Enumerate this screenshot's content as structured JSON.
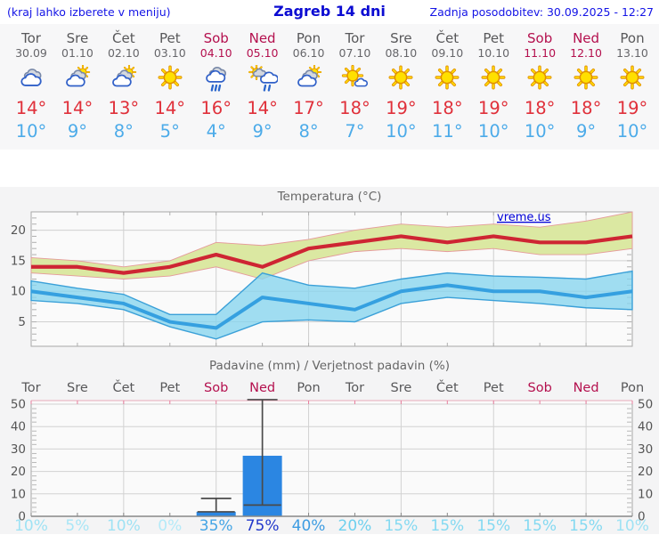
{
  "header": {
    "note": "(kraj lahko izberete v meniju)",
    "title": "Zagreb 14 dni",
    "updated": "Zadnja posodobitev: 30.09.2025 - 12:27"
  },
  "days": [
    {
      "name": "Tor",
      "date": "30.09",
      "weekend": false,
      "icon": "cloudy",
      "tmax": "14°",
      "tmin": "10°",
      "pop": "10%",
      "pop_color": "#9fe2f4"
    },
    {
      "name": "Sre",
      "date": "01.10",
      "weekend": false,
      "icon": "partly",
      "tmax": "14°",
      "tmin": "9°",
      "pop": "5%",
      "pop_color": "#a9e6f6"
    },
    {
      "name": "Čet",
      "date": "02.10",
      "weekend": false,
      "icon": "partly",
      "tmax": "13°",
      "tmin": "8°",
      "pop": "10%",
      "pop_color": "#9fe2f4"
    },
    {
      "name": "Pet",
      "date": "03.10",
      "weekend": false,
      "icon": "sun",
      "tmax": "14°",
      "tmin": "5°",
      "pop": "0%",
      "pop_color": "#b4eaf8"
    },
    {
      "name": "Sob",
      "date": "04.10",
      "weekend": true,
      "icon": "rain",
      "tmax": "16°",
      "tmin": "4°",
      "pop": "35%",
      "pop_color": "#45a5e5"
    },
    {
      "name": "Ned",
      "date": "05.10",
      "weekend": true,
      "icon": "sunrain",
      "tmax": "14°",
      "tmin": "9°",
      "pop": "75%",
      "pop_color": "#2238cb"
    },
    {
      "name": "Pon",
      "date": "06.10",
      "weekend": false,
      "icon": "partly",
      "tmax": "17°",
      "tmin": "8°",
      "pop": "40%",
      "pop_color": "#3d9ce2"
    },
    {
      "name": "Tor",
      "date": "07.10",
      "weekend": false,
      "icon": "suncloud",
      "tmax": "18°",
      "tmin": "7°",
      "pop": "20%",
      "pop_color": "#6ed0ee"
    },
    {
      "name": "Sre",
      "date": "08.10",
      "weekend": false,
      "icon": "sun",
      "tmax": "19°",
      "tmin": "10°",
      "pop": "15%",
      "pop_color": "#84d9f1"
    },
    {
      "name": "Čet",
      "date": "09.10",
      "weekend": false,
      "icon": "sun",
      "tmax": "18°",
      "tmin": "11°",
      "pop": "15%",
      "pop_color": "#84d9f1"
    },
    {
      "name": "Pet",
      "date": "10.10",
      "weekend": false,
      "icon": "sun",
      "tmax": "19°",
      "tmin": "10°",
      "pop": "15%",
      "pop_color": "#84d9f1"
    },
    {
      "name": "Sob",
      "date": "11.10",
      "weekend": true,
      "icon": "sun",
      "tmax": "18°",
      "tmin": "10°",
      "pop": "15%",
      "pop_color": "#84d9f1"
    },
    {
      "name": "Ned",
      "date": "12.10",
      "weekend": true,
      "icon": "sun",
      "tmax": "18°",
      "tmin": "9°",
      "pop": "15%",
      "pop_color": "#84d9f1"
    },
    {
      "name": "Pon",
      "date": "13.10",
      "weekend": false,
      "icon": "sun",
      "tmax": "19°",
      "tmin": "10°",
      "pop": "10%",
      "pop_color": "#9fe2f4"
    }
  ],
  "chart_data": [
    {
      "type": "line",
      "title": "Temperatura (°C)",
      "watermark": "vreme.us",
      "x_days": [
        "Tor 30.09",
        "Sre 01.10",
        "Čet 02.10",
        "Pet 03.10",
        "Sob 04.10",
        "Ned 05.10",
        "Pon 06.10",
        "Tor 07.10",
        "Sre 08.10",
        "Čet 09.10",
        "Pet 10.10",
        "Sob 11.10",
        "Ned 12.10",
        "Pon 13.10"
      ],
      "ylim": [
        1,
        23
      ],
      "yticks": [
        5,
        10,
        15,
        20
      ],
      "grid": true,
      "series": [
        {
          "name": "max_temp",
          "color": "#ce2533",
          "values": [
            14,
            14,
            13,
            14,
            16,
            14,
            17,
            18,
            19,
            18,
            19,
            18,
            18,
            19
          ]
        },
        {
          "name": "min_temp",
          "color": "#35a0e0",
          "values": [
            10,
            9,
            8,
            5,
            4,
            9,
            8,
            7,
            10,
            11,
            10,
            10,
            9,
            10
          ]
        },
        {
          "name": "max_range_high",
          "values": [
            15.5,
            15,
            14,
            15,
            18,
            17.5,
            18.5,
            20,
            21,
            20.5,
            21,
            20.5,
            21.5,
            23
          ]
        },
        {
          "name": "max_range_low",
          "values": [
            13,
            12.5,
            12,
            12.5,
            14,
            12,
            15,
            16.5,
            17,
            16.5,
            17,
            16,
            16,
            17
          ]
        },
        {
          "name": "min_range_high",
          "values": [
            11.7,
            10.5,
            9.5,
            6.2,
            6.2,
            13,
            11,
            10.5,
            12,
            13,
            12.5,
            12.3,
            12,
            13.3
          ]
        },
        {
          "name": "min_range_low",
          "values": [
            8.5,
            8,
            7,
            4.2,
            2.2,
            5,
            5.3,
            5,
            8,
            9,
            8.5,
            8,
            7.3,
            7
          ]
        }
      ],
      "band_colors": {
        "max_band": "#dbe8a2",
        "max_band_edge": "#e59a9a",
        "min_band": "#86d5ee",
        "min_band_edge": "#3aa0d8"
      }
    },
    {
      "type": "bar",
      "title": "Padavine (mm) / Verjetnost padavin (%)",
      "ylim": [
        0,
        52
      ],
      "yticks": [
        0,
        10,
        20,
        30,
        40,
        50
      ],
      "bar_color": "#2b86e2",
      "bars_mm": [
        0,
        0,
        0,
        0,
        2,
        27,
        0,
        0,
        0,
        0,
        0,
        0,
        0,
        0
      ],
      "whiskers": [
        {
          "day_index": 4,
          "low": 2,
          "high": 8
        },
        {
          "day_index": 5,
          "low": 5,
          "high": 52
        }
      ],
      "probability_pct": [
        10,
        5,
        10,
        0,
        35,
        75,
        40,
        20,
        15,
        15,
        15,
        15,
        15,
        10
      ]
    }
  ]
}
